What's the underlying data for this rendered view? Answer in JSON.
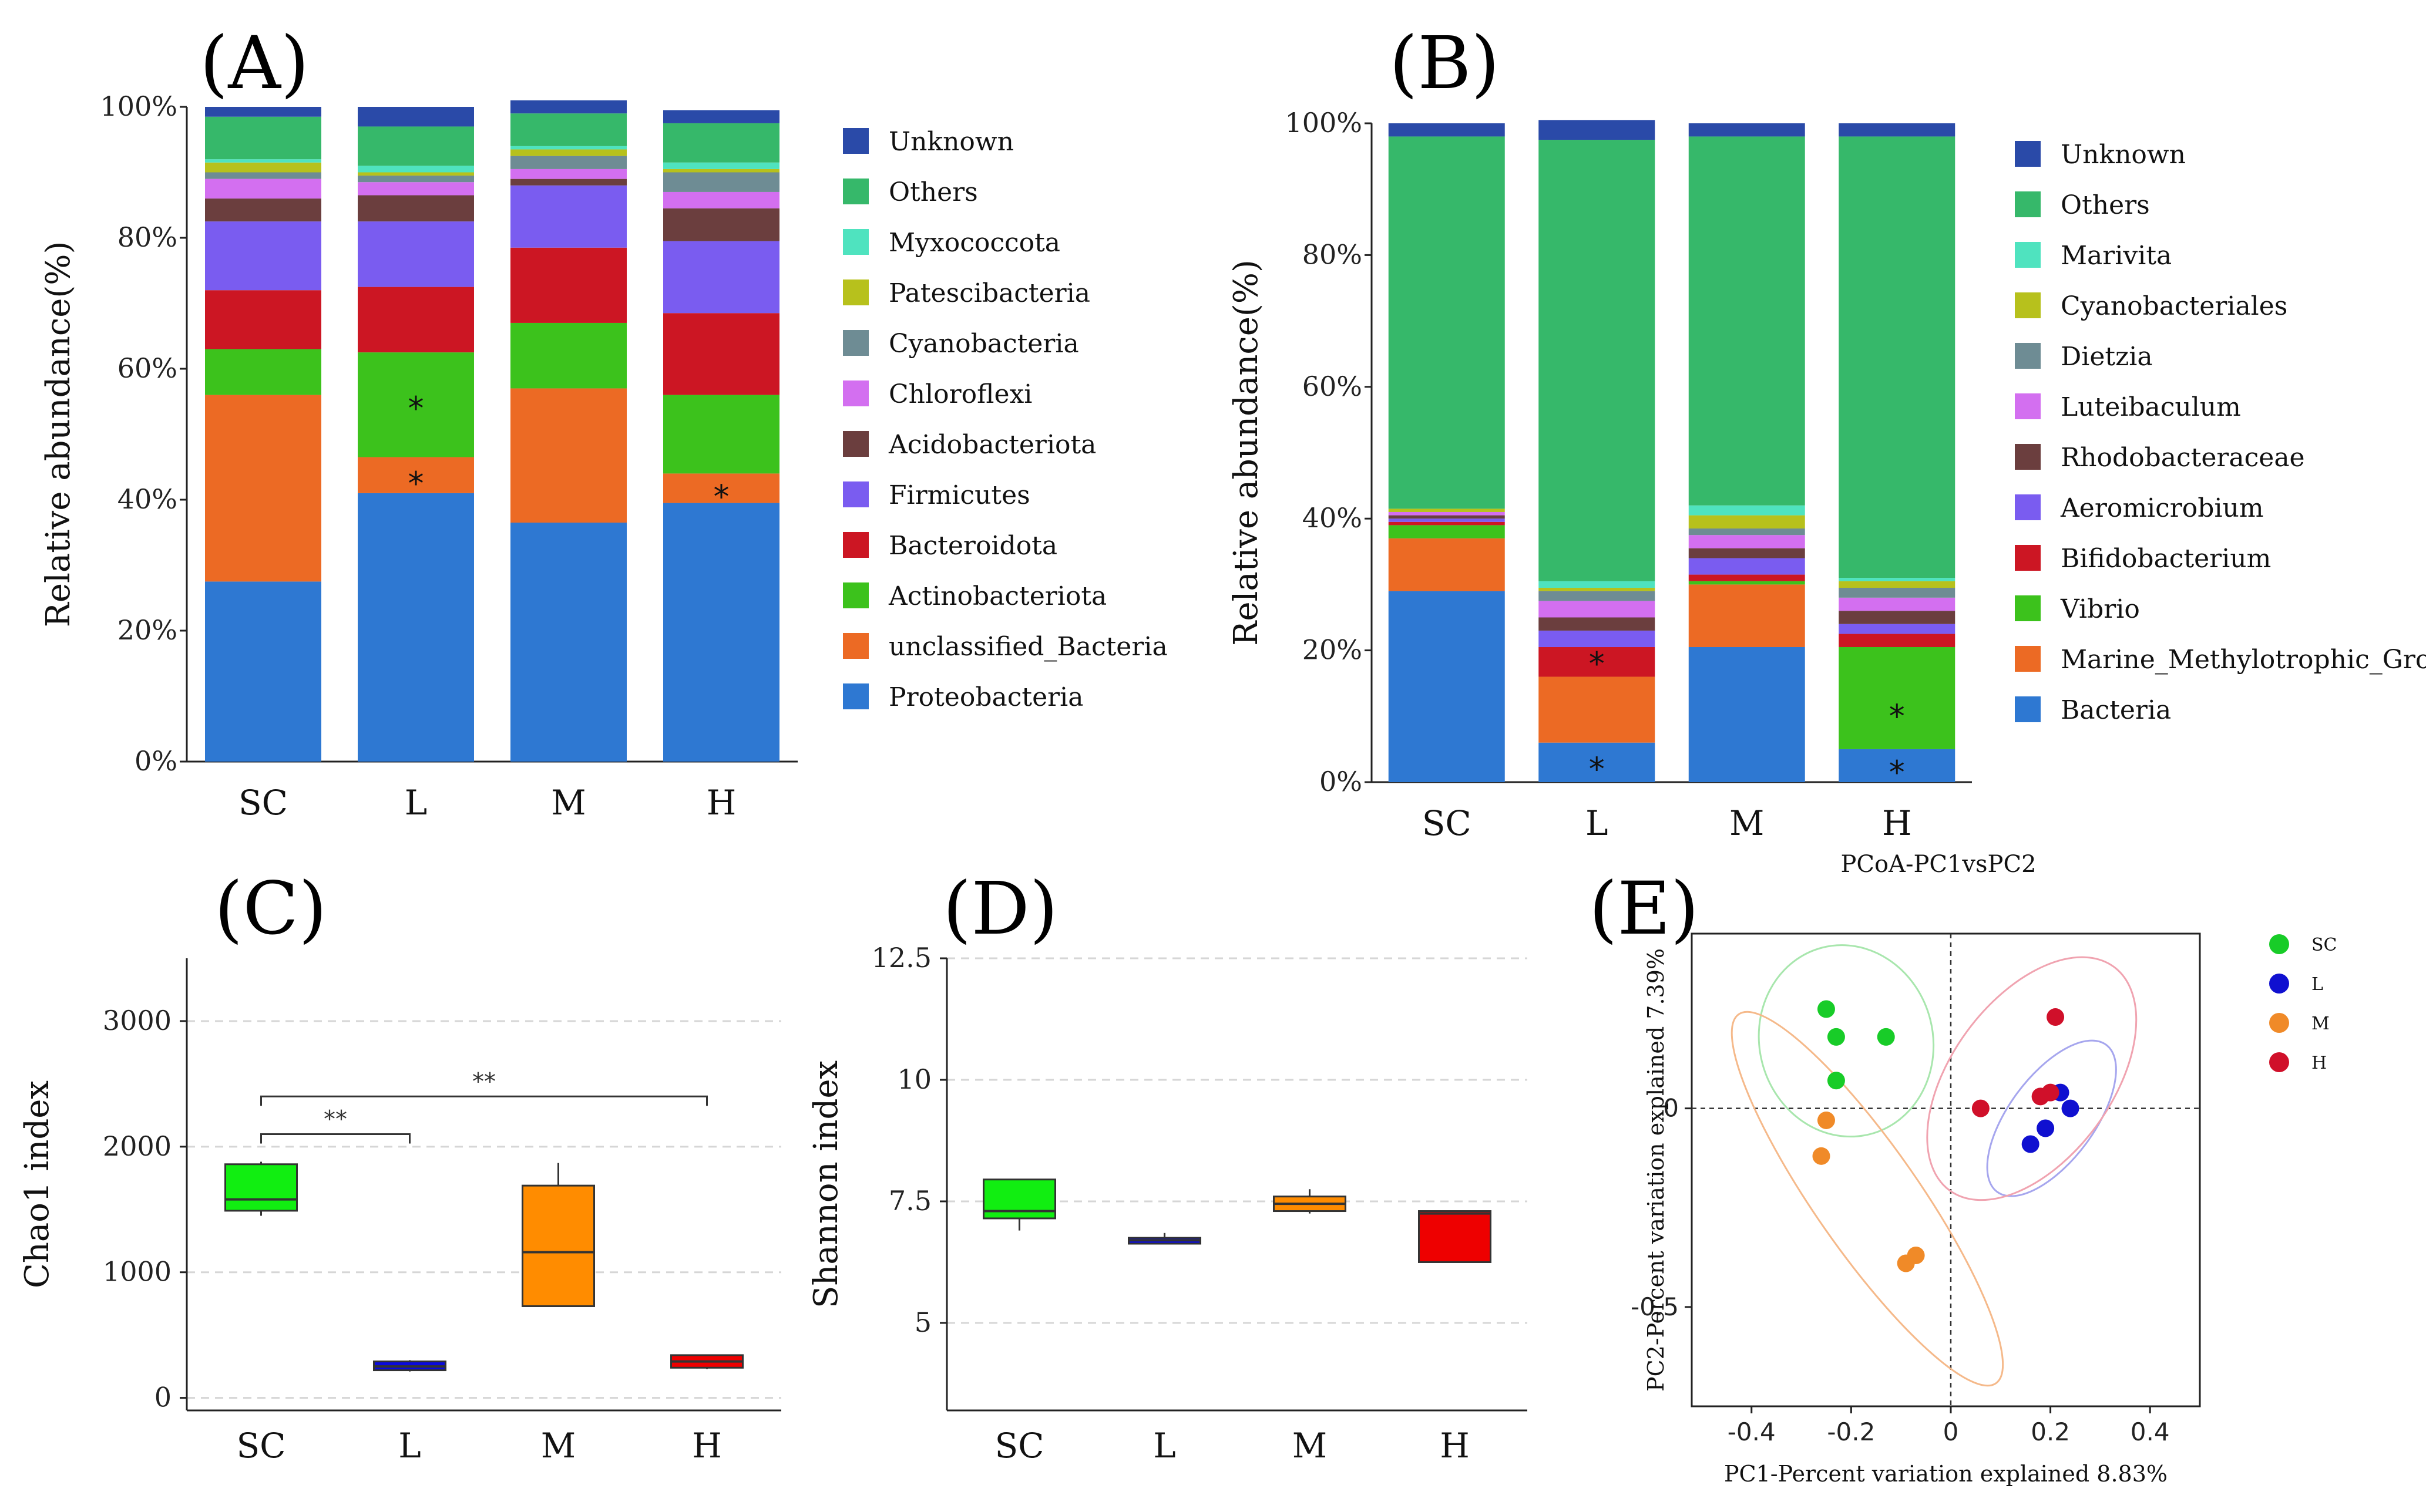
{
  "chart_data": [
    {
      "panel": "(A)",
      "type": "stacked-bar",
      "ylabel": "Relative abundance(%)",
      "ytick_labels": [
        "0%",
        "20%",
        "40%",
        "60%",
        "80%",
        "100%"
      ],
      "ylim": [
        0,
        100
      ],
      "categories": [
        "SC",
        "L",
        "M",
        "H"
      ],
      "series": [
        {
          "name": "Proteobacteria",
          "color": "#2e78d2",
          "values": [
            27.5,
            41,
            36.5,
            39.5
          ]
        },
        {
          "name": "unclassified_Bacteria",
          "color": "#ec6a24",
          "values": [
            28.5,
            5.5,
            20.5,
            4.5
          ]
        },
        {
          "name": "Actinobacteriota",
          "color": "#3cc21c",
          "values": [
            7,
            16,
            10,
            12
          ]
        },
        {
          "name": "Bacteroidota",
          "color": "#cc1623",
          "values": [
            9,
            10,
            11.5,
            12.5
          ]
        },
        {
          "name": "Firmicutes",
          "color": "#7a5cf0",
          "values": [
            10.5,
            10,
            9.5,
            11
          ]
        },
        {
          "name": "Acidobacteriota",
          "color": "#6b3e3e",
          "values": [
            3.5,
            4,
            1,
            5
          ]
        },
        {
          "name": "Chloroflexi",
          "color": "#d36ff0",
          "values": [
            3,
            2,
            1.5,
            2.5
          ]
        },
        {
          "name": "Cyanobacteria",
          "color": "#6e8c94",
          "values": [
            1,
            1,
            2,
            3
          ]
        },
        {
          "name": "Patescibacteria",
          "color": "#b7c11c",
          "values": [
            1.5,
            0.5,
            1,
            0.5
          ]
        },
        {
          "name": "Myxococcota",
          "color": "#4fe3bf",
          "values": [
            0.5,
            1,
            0.5,
            1
          ]
        },
        {
          "name": "Others",
          "color": "#36b86a",
          "values": [
            6.5,
            6,
            5,
            6
          ]
        },
        {
          "name": "Unknown",
          "color": "#2a4aa8",
          "values": [
            1.5,
            3,
            2,
            2
          ]
        }
      ],
      "legend_order": [
        "Unknown",
        "Others",
        "Myxococcota",
        "Patescibacteria",
        "Cyanobacteria",
        "Chloroflexi",
        "Acidobacteriota",
        "Firmicutes",
        "Bacteroidota",
        "Actinobacteriota",
        "unclassified_Bacteria",
        "Proteobacteria"
      ],
      "annotations": [
        {
          "category": "L",
          "y": 55,
          "text": "*"
        },
        {
          "category": "L",
          "y": 43.5,
          "text": "*"
        },
        {
          "category": "H",
          "y": 41.5,
          "text": "*"
        }
      ]
    },
    {
      "panel": "(B)",
      "type": "stacked-bar",
      "ylabel": "Relative abundance(%)",
      "ytick_labels": [
        "0%",
        "20%",
        "40%",
        "60%",
        "80%",
        "100%"
      ],
      "ylim": [
        0,
        100
      ],
      "categories": [
        "SC",
        "L",
        "M",
        "H"
      ],
      "series": [
        {
          "name": "Bacteria",
          "color": "#2e78d2",
          "values": [
            29,
            6,
            20.5,
            5
          ]
        },
        {
          "name": "Marine_Methylotrophic_Group_",
          "color": "#ec6a24",
          "values": [
            8,
            10,
            9.5,
            0
          ]
        },
        {
          "name": "Vibrio",
          "color": "#3cc21c",
          "values": [
            2,
            0,
            0.5,
            15.5
          ]
        },
        {
          "name": "Bifidobacterium",
          "color": "#cc1623",
          "values": [
            0.5,
            4.5,
            1,
            2
          ]
        },
        {
          "name": "Aeromicrobium",
          "color": "#7a5cf0",
          "values": [
            0.5,
            2.5,
            2.5,
            1.5
          ]
        },
        {
          "name": "Rhodobacteraceae",
          "color": "#6b3e3e",
          "values": [
            0.5,
            2,
            1.5,
            2
          ]
        },
        {
          "name": "Luteibaculum",
          "color": "#d36ff0",
          "values": [
            0.5,
            2.5,
            2,
            2
          ]
        },
        {
          "name": "Dietzia",
          "color": "#6e8c94",
          "values": [
            0,
            1.5,
            1,
            1.5
          ]
        },
        {
          "name": "Cyanobacteriales",
          "color": "#b7c11c",
          "values": [
            0.5,
            0.5,
            2,
            1
          ]
        },
        {
          "name": "Marivita",
          "color": "#4fe3bf",
          "values": [
            0,
            1,
            1.5,
            0.5
          ]
        },
        {
          "name": "Others",
          "color": "#36b86a",
          "values": [
            56.5,
            67,
            56,
            67
          ]
        },
        {
          "name": "Unknown",
          "color": "#2a4aa8",
          "values": [
            2,
            3,
            2,
            2
          ]
        }
      ],
      "legend_order": [
        "Unknown",
        "Others",
        "Marivita",
        "Cyanobacteriales",
        "Dietzia",
        "Luteibaculum",
        "Rhodobacteraceae",
        "Aeromicrobium",
        "Bifidobacterium",
        "Vibrio",
        "Marine_Methylotrophic_Group_",
        "Bacteria"
      ],
      "annotations": [
        {
          "category": "L",
          "y": 19,
          "text": "*"
        },
        {
          "category": "L",
          "y": 3,
          "text": "*"
        },
        {
          "category": "H",
          "y": 11,
          "text": "*"
        },
        {
          "category": "H",
          "y": 2.5,
          "text": "*"
        }
      ]
    },
    {
      "panel": "(C)",
      "type": "boxplot",
      "ylabel": "Chao1 index",
      "yticks": [
        0,
        1000,
        2000,
        3000
      ],
      "ylim": [
        -100,
        3500
      ],
      "categories": [
        "SC",
        "L",
        "M",
        "H"
      ],
      "boxes": [
        {
          "category": "SC",
          "min": 1450,
          "q1": 1490,
          "median": 1580,
          "q3": 1860,
          "max": 1880,
          "color": "#11ee11"
        },
        {
          "category": "L",
          "min": 210,
          "q1": 220,
          "median": 250,
          "q3": 290,
          "max": 300,
          "color": "#0a0adc"
        },
        {
          "category": "M",
          "min": 730,
          "q1": 730,
          "median": 1160,
          "q3": 1690,
          "max": 1870,
          "color": "#ff8c00"
        },
        {
          "category": "H",
          "min": 230,
          "q1": 240,
          "median": 290,
          "q3": 340,
          "max": 340,
          "color": "#ee0000"
        }
      ],
      "significance": [
        {
          "from": "SC",
          "to": "L",
          "y": 2100,
          "label": "**"
        },
        {
          "from": "SC",
          "to": "H",
          "y": 2400,
          "label": "**"
        }
      ]
    },
    {
      "panel": "(D)",
      "type": "boxplot",
      "ylabel": "Shannon index",
      "yticks": [
        5,
        7.5,
        10,
        12.5
      ],
      "ytick_labels": [
        "5",
        "7.5",
        "10",
        "12.5"
      ],
      "ylim": [
        3.2,
        12.5
      ],
      "categories": [
        "SC",
        "L",
        "M",
        "H"
      ],
      "boxes": [
        {
          "category": "SC",
          "min": 6.9,
          "q1": 7.15,
          "median": 7.3,
          "q3": 7.95,
          "max": 7.95,
          "color": "#11ee11"
        },
        {
          "category": "L",
          "min": 6.63,
          "q1": 6.63,
          "median": 6.7,
          "q3": 6.75,
          "max": 6.85,
          "color": "#0a0adc"
        },
        {
          "category": "M",
          "min": 7.25,
          "q1": 7.3,
          "median": 7.45,
          "q3": 7.6,
          "max": 7.75,
          "color": "#ff8c00"
        },
        {
          "category": "H",
          "min": 6.25,
          "q1": 6.25,
          "median": 7.25,
          "q3": 7.3,
          "max": 7.3,
          "color": "#ee0000"
        }
      ]
    },
    {
      "panel": "(E)",
      "type": "scatter",
      "title": "PCoA-PC1vsPC2",
      "xlabel": "PC1-Percent variation explained 8.83%",
      "ylabel": "PC2-Percent variation explained 7.39%",
      "xlim": [
        -0.52,
        0.5
      ],
      "ylim": [
        -0.75,
        0.44
      ],
      "xticks": [
        -0.4,
        -0.2,
        0,
        0.2,
        0.4
      ],
      "yticks": [
        -0.5,
        0
      ],
      "series": [
        {
          "name": "SC",
          "color": "#18cc28",
          "points": [
            [
              -0.25,
              0.25
            ],
            [
              -0.23,
              0.18
            ],
            [
              -0.13,
              0.18
            ],
            [
              -0.23,
              0.07
            ]
          ]
        },
        {
          "name": "L",
          "color": "#1010d0",
          "points": [
            [
              0.22,
              0.04
            ],
            [
              0.24,
              0.0
            ],
            [
              0.19,
              -0.05
            ],
            [
              0.16,
              -0.09
            ]
          ]
        },
        {
          "name": "M",
          "color": "#f08a28",
          "points": [
            [
              -0.25,
              -0.03
            ],
            [
              -0.26,
              -0.12
            ],
            [
              -0.09,
              -0.39
            ],
            [
              -0.07,
              -0.37
            ]
          ]
        },
        {
          "name": "H",
          "color": "#d0102a",
          "points": [
            [
              0.21,
              0.23
            ],
            [
              0.06,
              0.0
            ],
            [
              0.18,
              0.03
            ],
            [
              0.2,
              0.04
            ]
          ]
        }
      ]
    }
  ],
  "panel_labels": {
    "a": "(A)",
    "b": "(B)",
    "c": "(C)",
    "d": "(D)",
    "e": "(E)"
  }
}
